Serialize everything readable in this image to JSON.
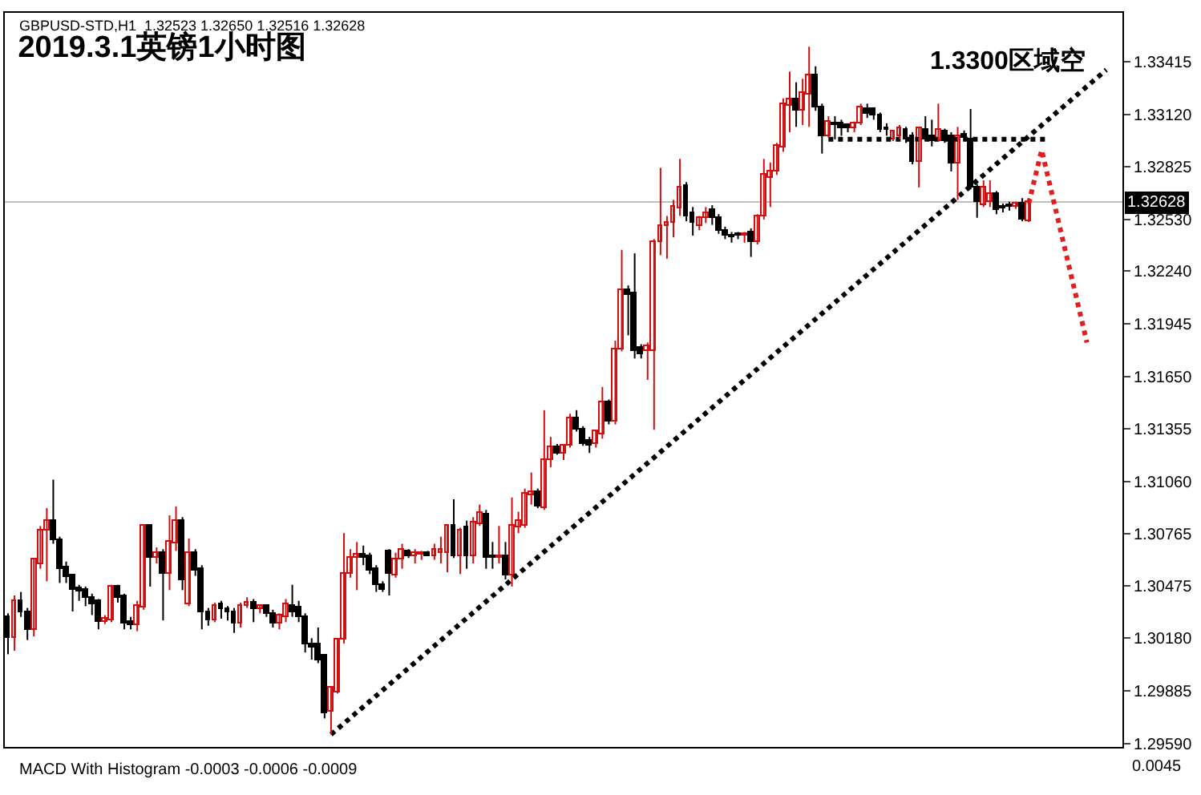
{
  "chart_data": {
    "type": "candlestick",
    "title": "2019.3.1英镑1小时图",
    "subtitle": "GBPUSD-STD,H1  1.32523 1.32650 1.32516 1.32628",
    "annotations": [
      "1.3300区域空",
      "MACD With Histogram -0.0003 -0.0006 -0.0009",
      "0.0045"
    ],
    "categories": [
      null,
      null,
      null,
      null,
      null,
      null,
      null,
      null,
      null,
      null,
      null,
      null,
      null,
      null,
      null,
      null,
      null,
      null,
      null,
      null,
      null,
      null,
      null,
      null,
      null,
      null,
      null,
      null,
      null,
      null,
      null,
      null,
      null,
      null,
      null,
      null,
      null,
      null,
      null,
      null,
      null,
      null,
      null,
      null,
      null,
      null,
      null,
      null,
      null,
      null,
      null,
      null,
      null,
      null,
      null,
      null,
      null,
      null,
      null,
      null,
      null,
      null,
      null,
      null,
      null,
      null,
      null,
      null,
      null,
      null,
      null,
      null,
      null,
      null,
      null,
      null,
      null,
      null,
      null,
      null,
      null,
      null,
      null,
      null,
      null,
      null,
      null,
      null,
      null,
      null,
      null,
      null,
      null,
      null,
      null,
      null,
      null,
      null,
      null,
      null,
      null,
      null,
      null,
      null,
      null,
      null,
      null,
      null,
      null,
      null,
      null,
      null,
      null,
      null,
      null,
      null,
      null,
      null,
      null,
      null,
      null,
      null,
      null,
      null,
      null,
      null,
      null,
      null,
      null,
      null,
      null,
      null,
      null,
      null,
      null,
      null,
      null,
      null,
      null,
      null,
      null,
      null,
      null,
      null,
      null,
      null,
      null,
      null,
      null,
      null,
      null,
      null,
      null,
      null,
      null,
      null,
      null,
      null,
      null,
      null,
      null,
      null,
      null,
      null,
      null,
      null,
      null,
      null,
      null,
      null,
      null,
      null,
      null
    ],
    "ohlc": [
      [
        1.303,
        1.3032,
        1.3009,
        1.3018
      ],
      [
        1.3018,
        1.3042,
        1.3011,
        1.3039
      ],
      [
        1.3039,
        1.3044,
        1.303,
        1.3033
      ],
      [
        1.3033,
        1.3035,
        1.3017,
        1.3023
      ],
      [
        1.3023,
        1.3063,
        1.3019,
        1.3062
      ],
      [
        1.306,
        1.3081,
        1.3057,
        1.3078
      ],
      [
        1.3078,
        1.3091,
        1.305,
        1.3084
      ],
      [
        1.3084,
        1.3107,
        1.3071,
        1.3073
      ],
      [
        1.3073,
        1.3075,
        1.3049,
        1.3057
      ],
      [
        1.3058,
        1.3061,
        1.3049,
        1.3052
      ],
      [
        1.3053,
        1.3054,
        1.3033,
        1.3045
      ],
      [
        1.3046,
        1.3048,
        1.3039,
        1.3044
      ],
      [
        1.3045,
        1.3047,
        1.3036,
        1.3041
      ],
      [
        1.3041,
        1.3043,
        1.3031,
        1.3037
      ],
      [
        1.3039,
        1.304,
        1.3023,
        1.3027
      ],
      [
        1.3027,
        1.3031,
        1.3026,
        1.3029
      ],
      [
        1.3028,
        1.3048,
        1.3027,
        1.3047
      ],
      [
        1.3047,
        1.3048,
        1.3038,
        1.3041
      ],
      [
        1.3042,
        1.3043,
        1.3023,
        1.3026
      ],
      [
        1.3027,
        1.303,
        1.3023,
        1.3025
      ],
      [
        1.3025,
        1.3039,
        1.3022,
        1.3036
      ],
      [
        1.3035,
        1.3082,
        1.3034,
        1.3081
      ],
      [
        1.3081,
        1.3082,
        1.3047,
        1.3063
      ],
      [
        1.3063,
        1.3069,
        1.306,
        1.3066
      ],
      [
        1.3066,
        1.3068,
        1.3028,
        1.3054
      ],
      [
        1.3054,
        1.3087,
        1.3045,
        1.3072
      ],
      [
        1.3071,
        1.3092,
        1.3067,
        1.3084
      ],
      [
        1.3084,
        1.3086,
        1.3045,
        1.3051
      ],
      [
        1.3037,
        1.3074,
        1.3036,
        1.3066
      ],
      [
        1.3066,
        1.3068,
        1.3053,
        1.3056
      ],
      [
        1.3057,
        1.3059,
        1.3023,
        1.3033
      ],
      [
        1.3033,
        1.3035,
        1.3025,
        1.3028
      ],
      [
        1.3028,
        1.3038,
        1.3027,
        1.3036
      ],
      [
        1.3037,
        1.3039,
        1.3029,
        1.3034
      ],
      [
        1.3034,
        1.3036,
        1.3028,
        1.3033
      ],
      [
        1.3033,
        1.3035,
        1.3021,
        1.3026
      ],
      [
        1.3026,
        1.3038,
        1.3024,
        1.3036
      ],
      [
        1.3036,
        1.3041,
        1.3035,
        1.3038
      ],
      [
        1.3038,
        1.304,
        1.3027,
        1.3034
      ],
      [
        1.3034,
        1.3037,
        1.3032,
        1.3036
      ],
      [
        1.3036,
        1.3037,
        1.303,
        1.3032
      ],
      [
        1.3032,
        1.3034,
        1.3024,
        1.3026
      ],
      [
        1.3026,
        1.3032,
        1.3023,
        1.3031
      ],
      [
        1.303,
        1.304,
        1.3027,
        1.3037
      ],
      [
        1.3036,
        1.3048,
        1.303,
        1.3033
      ],
      [
        1.3035,
        1.3039,
        1.3027,
        1.303
      ],
      [
        1.303,
        1.3032,
        1.301,
        1.3015
      ],
      [
        1.3015,
        1.3018,
        1.3006,
        1.3013
      ],
      [
        1.3015,
        1.3024,
        1.3004,
        1.3006
      ],
      [
        1.3008,
        1.3009,
        1.2973,
        1.2976
      ],
      [
        1.2977,
        1.2991,
        1.2964,
        1.299
      ],
      [
        1.2988,
        1.3018,
        1.2987,
        1.3017
      ],
      [
        1.3017,
        1.3077,
        1.3015,
        1.3054
      ],
      [
        1.3054,
        1.3068,
        1.3052,
        1.3063
      ],
      [
        1.3063,
        1.3072,
        1.3045,
        1.3065
      ],
      [
        1.3065,
        1.307,
        1.3059,
        1.3063
      ],
      [
        1.3064,
        1.3066,
        1.3054,
        1.3056
      ],
      [
        1.3057,
        1.3059,
        1.3044,
        1.3048
      ],
      [
        1.3048,
        1.305,
        1.3044,
        1.3045
      ],
      [
        1.3067,
        1.3068,
        1.3042,
        1.3054
      ],
      [
        1.3053,
        1.3066,
        1.3052,
        1.3062
      ],
      [
        1.3062,
        1.3071,
        1.3057,
        1.3068
      ],
      [
        1.3067,
        1.3068,
        1.3063,
        1.3064
      ],
      [
        1.3064,
        1.3068,
        1.306,
        1.3066
      ],
      [
        1.3065,
        1.3067,
        1.3062,
        1.3066
      ],
      [
        1.3066,
        1.3067,
        1.3064,
        1.3064
      ],
      [
        1.3064,
        1.3071,
        1.3062,
        1.3068
      ],
      [
        1.3066,
        1.3075,
        1.306,
        1.3068
      ],
      [
        1.3066,
        1.3082,
        1.3055,
        1.3081
      ],
      [
        1.3081,
        1.3096,
        1.3063,
        1.3064
      ],
      [
        1.3064,
        1.308,
        1.3054,
        1.3078
      ],
      [
        1.308,
        1.3084,
        1.3057,
        1.3064
      ],
      [
        1.3064,
        1.3086,
        1.306,
        1.3083
      ],
      [
        1.3082,
        1.3093,
        1.3081,
        1.3088
      ],
      [
        1.3087,
        1.309,
        1.3057,
        1.3063
      ],
      [
        1.3064,
        1.3072,
        1.3057,
        1.3063
      ],
      [
        1.3063,
        1.3081,
        1.306,
        1.3064
      ],
      [
        1.3064,
        1.3072,
        1.3051,
        1.3053
      ],
      [
        1.3053,
        1.3097,
        1.3047,
        1.3081
      ],
      [
        1.308,
        1.3089,
        1.3077,
        1.3084
      ],
      [
        1.3081,
        1.3102,
        1.308,
        1.3099
      ],
      [
        1.3098,
        1.3111,
        1.3093,
        1.31
      ],
      [
        1.31,
        1.3102,
        1.3091,
        1.3092
      ],
      [
        1.3091,
        1.3146,
        1.309,
        1.3118
      ],
      [
        1.3118,
        1.3131,
        1.3114,
        1.3125
      ],
      [
        1.3125,
        1.3127,
        1.3121,
        1.3122
      ],
      [
        1.3122,
        1.3127,
        1.3118,
        1.3126
      ],
      [
        1.3126,
        1.3144,
        1.3125,
        1.3141
      ],
      [
        1.3141,
        1.3146,
        1.3134,
        1.3135
      ],
      [
        1.3135,
        1.3137,
        1.3126,
        1.3127
      ],
      [
        1.3129,
        1.3131,
        1.3122,
        1.3126
      ],
      [
        1.3127,
        1.3135,
        1.3125,
        1.3134
      ],
      [
        1.3132,
        1.3159,
        1.313,
        1.315
      ],
      [
        1.315,
        1.3152,
        1.3138,
        1.314
      ],
      [
        1.314,
        1.3185,
        1.3138,
        1.318
      ],
      [
        1.318,
        1.3236,
        1.3179,
        1.3213
      ],
      [
        1.3213,
        1.3216,
        1.3188,
        1.3211
      ],
      [
        1.3212,
        1.3234,
        1.3175,
        1.3179
      ],
      [
        1.3181,
        1.3183,
        1.3175,
        1.3177
      ],
      [
        1.3179,
        1.3184,
        1.3163,
        1.3182
      ],
      [
        1.3179,
        1.3242,
        1.3135,
        1.324
      ],
      [
        1.324,
        1.3282,
        1.3233,
        1.3249
      ],
      [
        1.3249,
        1.3255,
        1.3231,
        1.3251
      ],
      [
        1.3251,
        1.3264,
        1.3243,
        1.326
      ],
      [
        1.3259,
        1.3287,
        1.3255,
        1.3271
      ],
      [
        1.3272,
        1.3274,
        1.3252,
        1.3255
      ],
      [
        1.3257,
        1.326,
        1.3244,
        1.3251
      ],
      [
        1.3249,
        1.3255,
        1.3247,
        1.3254
      ],
      [
        1.3254,
        1.326,
        1.3251,
        1.3257
      ],
      [
        1.3258,
        1.3261,
        1.325,
        1.3254
      ],
      [
        1.3254,
        1.3256,
        1.3245,
        1.3247
      ],
      [
        1.3247,
        1.3249,
        1.3242,
        1.3244
      ],
      [
        1.3244,
        1.3246,
        1.324,
        1.3243
      ],
      [
        1.3245,
        1.3246,
        1.3242,
        1.3244
      ],
      [
        1.3244,
        1.3246,
        1.324,
        1.3245
      ],
      [
        1.3246,
        1.3248,
        1.3232,
        1.324
      ],
      [
        1.324,
        1.3256,
        1.3239,
        1.3255
      ],
      [
        1.3255,
        1.3287,
        1.3253,
        1.3278
      ],
      [
        1.3276,
        1.3285,
        1.326,
        1.328
      ],
      [
        1.328,
        1.3296,
        1.3278,
        1.3294
      ],
      [
        1.3293,
        1.3321,
        1.3291,
        1.3318
      ],
      [
        1.3317,
        1.3336,
        1.3302,
        1.332
      ],
      [
        1.332,
        1.333,
        1.3305,
        1.3314
      ],
      [
        1.3314,
        1.3332,
        1.3306,
        1.3324
      ],
      [
        1.3323,
        1.335,
        1.3305,
        1.3334
      ],
      [
        1.3334,
        1.3339,
        1.3314,
        1.3316
      ],
      [
        1.3316,
        1.3318,
        1.329,
        1.33
      ],
      [
        1.33,
        1.3311,
        1.3299,
        1.3308
      ],
      [
        1.3307,
        1.3311,
        1.3298,
        1.3306
      ],
      [
        1.3307,
        1.3309,
        1.33,
        1.3304
      ],
      [
        1.3306,
        1.3307,
        1.3302,
        1.3304
      ],
      [
        1.3304,
        1.3308,
        1.3302,
        1.3307
      ],
      [
        1.3307,
        1.3318,
        1.3306,
        1.3316
      ],
      [
        1.3315,
        1.3318,
        1.331,
        1.3312
      ],
      [
        1.3315,
        1.3316,
        1.3309,
        1.3311
      ],
      [
        1.3311,
        1.3313,
        1.3302,
        1.3303
      ],
      [
        1.3304,
        1.3307,
        1.33,
        1.3303
      ],
      [
        1.3298,
        1.3303,
        1.3297,
        1.3302
      ],
      [
        1.33,
        1.3306,
        1.3298,
        1.3304
      ],
      [
        1.3303,
        1.3305,
        1.3296,
        1.3298
      ],
      [
        1.33,
        1.3302,
        1.3284,
        1.3285
      ],
      [
        1.3285,
        1.3305,
        1.3271,
        1.3304
      ],
      [
        1.3303,
        1.3311,
        1.3297,
        1.3298
      ],
      [
        1.33,
        1.3309,
        1.3294,
        1.3297
      ],
      [
        1.3297,
        1.3318,
        1.3297,
        1.3303
      ],
      [
        1.3302,
        1.3304,
        1.3296,
        1.3297
      ],
      [
        1.33,
        1.3302,
        1.328,
        1.3284
      ],
      [
        1.3284,
        1.3305,
        1.3264,
        1.33
      ],
      [
        1.3301,
        1.3303,
        1.3297,
        1.3299
      ],
      [
        1.3298,
        1.3315,
        1.327,
        1.3271
      ],
      [
        1.3271,
        1.3273,
        1.3254,
        1.3263
      ],
      [
        1.3261,
        1.3275,
        1.326,
        1.3271
      ],
      [
        1.3263,
        1.3275,
        1.326,
        1.3267
      ],
      [
        1.3267,
        1.3269,
        1.3256,
        1.3258
      ],
      [
        1.326,
        1.3262,
        1.3257,
        1.3259
      ],
      [
        1.3261,
        1.3263,
        1.3258,
        1.326
      ],
      [
        1.326,
        1.3263,
        1.3259,
        1.3262
      ],
      [
        1.3262,
        1.3265,
        1.3252,
        1.3253
      ],
      [
        1.32523,
        1.3265,
        1.32516,
        1.32628
      ],
      null,
      null,
      null,
      null,
      null,
      null,
      null,
      null,
      null,
      null,
      null,
      null,
      null,
      null
    ],
    "series": [
      {
        "type": "line",
        "values": [
          null,
          null,
          null,
          null,
          null,
          null,
          null,
          null,
          null,
          null,
          null,
          null,
          null,
          null,
          null,
          null,
          null,
          null,
          null,
          null,
          null,
          null,
          null,
          null,
          null,
          null,
          null,
          null,
          null,
          null,
          null,
          null,
          null,
          null,
          null,
          null,
          null,
          null,
          null,
          null,
          null,
          null,
          null,
          null,
          null,
          null,
          null,
          null,
          null,
          null,
          1.2964,
          null,
          null,
          null,
          null,
          null,
          null,
          null,
          null,
          null,
          null,
          null,
          null,
          null,
          null,
          null,
          null,
          null,
          null,
          null,
          null,
          null,
          null,
          null,
          null,
          null,
          null,
          null,
          null,
          null,
          null,
          null,
          null,
          null,
          null,
          null,
          null,
          null,
          null,
          null,
          null,
          null,
          null,
          null,
          null,
          null,
          null,
          null,
          null,
          null,
          null,
          null,
          null,
          null,
          null,
          null,
          null,
          null,
          null,
          null,
          null,
          null,
          null,
          null,
          null,
          null,
          null,
          null,
          null,
          null,
          null,
          null,
          null,
          null,
          null,
          null,
          null,
          null,
          null,
          null,
          null,
          null,
          null,
          null,
          null,
          null,
          null,
          null,
          null,
          null,
          null,
          null,
          null,
          null,
          null,
          null,
          null,
          null,
          null,
          null,
          null,
          null,
          null,
          null,
          null,
          null,
          null,
          null,
          null,
          null,
          null,
          null,
          null,
          null,
          null,
          null,
          null,
          null,
          null,
          null,
          1.3337,
          null,
          null
        ],
        "color": "#000000",
        "line_style": "dotted"
      },
      {
        "type": "line",
        "values": [
          null,
          null,
          null,
          null,
          null,
          null,
          null,
          null,
          null,
          null,
          null,
          null,
          null,
          null,
          null,
          null,
          null,
          null,
          null,
          null,
          null,
          null,
          null,
          null,
          null,
          null,
          null,
          null,
          null,
          null,
          null,
          null,
          null,
          null,
          null,
          null,
          null,
          null,
          null,
          null,
          null,
          null,
          null,
          null,
          null,
          null,
          null,
          null,
          null,
          null,
          null,
          null,
          null,
          null,
          null,
          null,
          null,
          null,
          null,
          null,
          null,
          null,
          null,
          null,
          null,
          null,
          null,
          null,
          null,
          null,
          null,
          null,
          null,
          null,
          null,
          null,
          null,
          null,
          null,
          null,
          null,
          null,
          null,
          null,
          null,
          null,
          null,
          null,
          null,
          null,
          null,
          null,
          null,
          null,
          null,
          null,
          null,
          null,
          null,
          null,
          null,
          null,
          null,
          null,
          null,
          null,
          null,
          null,
          null,
          null,
          null,
          null,
          null,
          null,
          null,
          null,
          null,
          null,
          null,
          null,
          null,
          null,
          null,
          null,
          null,
          null,
          null,
          1.3298,
          null,
          null,
          null,
          null,
          null,
          null,
          null,
          null,
          null,
          null,
          null,
          null,
          null,
          null,
          null,
          null,
          null,
          null,
          null,
          null,
          null,
          null,
          null,
          null,
          null,
          null,
          null,
          null,
          null,
          null,
          null,
          null,
          null,
          1.3298,
          null,
          null,
          null,
          null,
          null,
          null,
          null,
          null,
          null,
          null,
          null
        ],
        "color": "#000000",
        "line_style": "dotted"
      },
      {
        "type": "line",
        "values": [
          null,
          null,
          null,
          null,
          null,
          null,
          null,
          null,
          null,
          null,
          null,
          null,
          null,
          null,
          null,
          null,
          null,
          null,
          null,
          null,
          null,
          null,
          null,
          null,
          null,
          null,
          null,
          null,
          null,
          null,
          null,
          null,
          null,
          null,
          null,
          null,
          null,
          null,
          null,
          null,
          null,
          null,
          null,
          null,
          null,
          null,
          null,
          null,
          null,
          null,
          null,
          null,
          null,
          null,
          null,
          null,
          null,
          null,
          null,
          null,
          null,
          null,
          null,
          null,
          null,
          null,
          null,
          null,
          null,
          null,
          null,
          null,
          null,
          null,
          null,
          null,
          null,
          null,
          null,
          null,
          null,
          null,
          null,
          null,
          null,
          null,
          null,
          null,
          null,
          null,
          null,
          null,
          null,
          null,
          null,
          null,
          null,
          null,
          null,
          null,
          null,
          null,
          null,
          null,
          null,
          null,
          null,
          null,
          null,
          null,
          null,
          null,
          null,
          null,
          null,
          null,
          null,
          null,
          null,
          null,
          null,
          null,
          null,
          null,
          null,
          null,
          null,
          null,
          null,
          null,
          null,
          null,
          null,
          null,
          null,
          null,
          null,
          null,
          null,
          null,
          null,
          null,
          null,
          null,
          null,
          null,
          null,
          null,
          null,
          null,
          null,
          null,
          null,
          null,
          null,
          null,
          null,
          null,
          1.3262,
          null,
          1.3292,
          null,
          null,
          null,
          null,
          null,
          null,
          1.3184,
          null,
          null,
          null,
          null,
          null
        ],
        "color": "#e02020",
        "line_style": "dotted"
      }
    ],
    "ref_lines": [
      {
        "axis": "y",
        "value": 1.32628,
        "label": "1.32628",
        "color": "#c0c0c0"
      }
    ],
    "ylim": [
      1.2957,
      1.3369
    ],
    "yticks": [
      1.33415,
      {
        "value": 1.3312,
        "label": "1.33120"
      },
      1.32825,
      {
        "value": 1.3253,
        "label": "1.32530"
      },
      {
        "value": 1.3224,
        "label": "1.32240"
      },
      1.31945,
      {
        "value": 1.3165,
        "label": "1.31650"
      },
      1.31355,
      {
        "value": 1.3106,
        "label": "1.31060"
      },
      1.30765,
      1.30475,
      {
        "value": 1.3018,
        "label": "1.30180"
      },
      1.29885,
      {
        "value": 1.2959,
        "label": "1.29590"
      }
    ],
    "tick_labels": "y"
  }
}
